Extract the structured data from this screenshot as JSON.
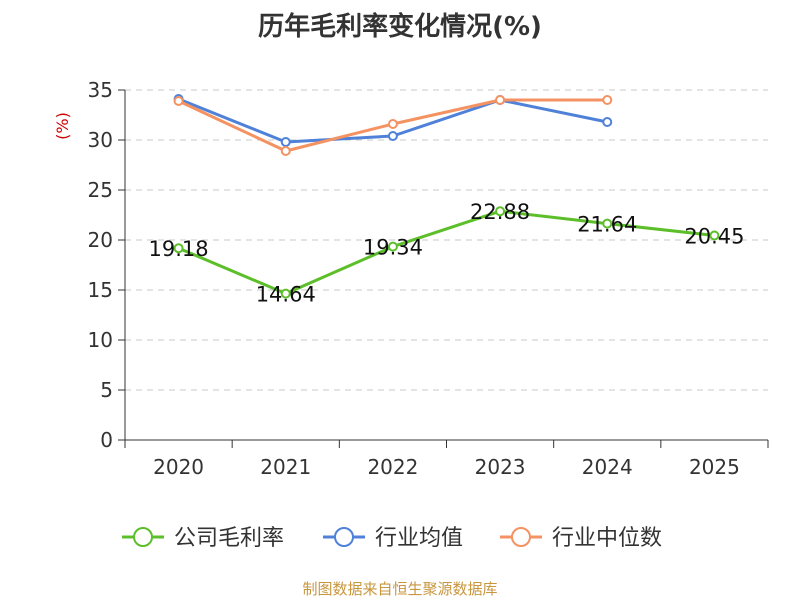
{
  "page": {
    "title": "历年毛利率变化情况(%)",
    "source": "制图数据来自恒生聚源数据库"
  },
  "chart_data": {
    "type": "line",
    "title": "历年毛利率变化情况(%)",
    "ylabel": "(%)",
    "xlabel": "",
    "categories": [
      "2020",
      "2021",
      "2022",
      "2023",
      "2024",
      "2025"
    ],
    "ylim": [
      0,
      35
    ],
    "yticks": [
      0,
      5,
      10,
      15,
      20,
      25,
      30,
      35
    ],
    "grid": true,
    "legend": "bottom",
    "series": [
      {
        "name": "公司毛利率",
        "color": "#5cbf2a",
        "values": [
          19.18,
          14.64,
          19.34,
          22.88,
          21.64,
          20.45
        ],
        "labels": [
          "19.18",
          "14.64",
          "19.34",
          "22.88",
          "21.64",
          "20.45"
        ]
      },
      {
        "name": "行业均值",
        "color": "#4f81d9",
        "values": [
          34.1,
          29.8,
          30.4,
          34.0,
          31.8,
          null
        ]
      },
      {
        "name": "行业中位数",
        "color": "#f59262",
        "values": [
          33.9,
          28.9,
          31.6,
          34.0,
          34.0,
          null
        ]
      }
    ]
  }
}
